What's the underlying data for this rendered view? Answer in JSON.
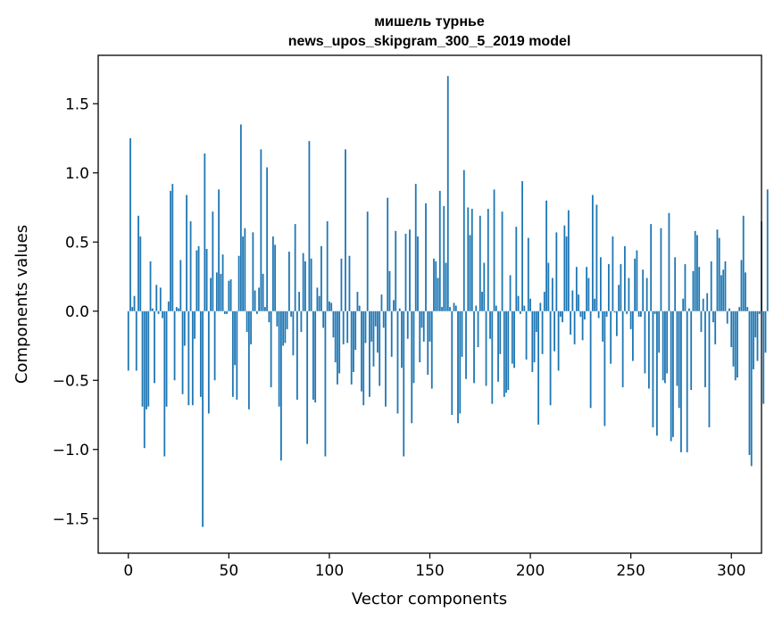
{
  "chart_data": {
    "type": "bar",
    "title": "мишель турнье",
    "subtitle": "news_upos_skipgram_300_5_2019 model",
    "xlabel": "Vector components",
    "ylabel": "Components values",
    "xlim": [
      -15,
      315
    ],
    "ylim": [
      -1.75,
      1.85
    ],
    "xticks": [
      0,
      50,
      100,
      150,
      200,
      250,
      300
    ],
    "xtick_labels": [
      "0",
      "50",
      "100",
      "150",
      "200",
      "250",
      "300"
    ],
    "yticks": [
      -1.5,
      -1.0,
      -0.5,
      0.0,
      0.5,
      1.0,
      1.5
    ],
    "ytick_labels": [
      "−1.5",
      "−1.0",
      "−0.5",
      "0.0",
      "0.5",
      "1.0",
      "1.5"
    ],
    "grid": false,
    "bar_color": "#1f77b4",
    "values": [
      -0.43,
      1.25,
      0.03,
      0.11,
      -0.43,
      0.69,
      0.54,
      -0.69,
      -0.99,
      -0.71,
      -0.69,
      0.36,
      0.02,
      -0.52,
      0.19,
      -0.02,
      0.17,
      -0.05,
      -1.05,
      -0.69,
      0.07,
      0.87,
      0.92,
      -0.5,
      0.03,
      0.02,
      0.37,
      -0.6,
      -0.25,
      0.84,
      -0.68,
      0.65,
      -0.68,
      -0.2,
      0.44,
      0.47,
      -0.62,
      -1.56,
      1.14,
      0.45,
      -0.74,
      0.24,
      0.72,
      -0.5,
      0.28,
      0.88,
      0.27,
      0.41,
      -0.02,
      -0.02,
      0.22,
      0.23,
      -0.62,
      -0.39,
      -0.64,
      0.4,
      1.35,
      0.54,
      0.6,
      -0.15,
      -0.71,
      -0.24,
      0.57,
      0.15,
      -0.02,
      0.17,
      1.17,
      0.27,
      0.03,
      1.04,
      -0.08,
      -0.55,
      0.54,
      0.48,
      -0.11,
      -0.69,
      -1.08,
      -0.25,
      -0.23,
      -0.13,
      0.43,
      -0.04,
      -0.32,
      0.63,
      -0.64,
      0.14,
      -0.15,
      0.42,
      0.36,
      -0.96,
      1.23,
      0.38,
      -0.64,
      -0.66,
      0.17,
      0.11,
      0.47,
      -0.12,
      -1.05,
      0.65,
      0.07,
      0.06,
      -0.19,
      -0.37,
      -0.53,
      -0.45,
      0.38,
      -0.24,
      1.17,
      -0.23,
      0.4,
      -0.53,
      -0.44,
      -0.28,
      0.14,
      0.04,
      -0.58,
      -0.68,
      -0.23,
      0.72,
      -0.62,
      -0.22,
      -0.4,
      -0.11,
      -0.3,
      -0.54,
      0.12,
      -0.12,
      -0.69,
      0.82,
      0.29,
      -0.33,
      0.08,
      0.58,
      -0.74,
      0.02,
      -0.41,
      -1.05,
      0.56,
      -0.2,
      0.59,
      -0.81,
      -0.52,
      0.92,
      0.54,
      -0.37,
      -0.12,
      -0.22,
      0.78,
      -0.46,
      -0.22,
      -0.56,
      0.38,
      0.36,
      0.24,
      0.87,
      0.03,
      0.76,
      0.35,
      1.7,
      0.03,
      -0.75,
      0.06,
      0.04,
      -0.81,
      -0.74,
      -0.33,
      1.02,
      -0.49,
      0.75,
      0.55,
      0.74,
      -0.52,
      0.04,
      -0.26,
      0.69,
      0.14,
      0.35,
      -0.54,
      0.74,
      -0.2,
      -0.67,
      0.88,
      0.04,
      -0.51,
      -0.31,
      0.72,
      -0.62,
      -0.59,
      -0.57,
      0.26,
      -0.38,
      -0.41,
      0.61,
      0.11,
      -0.02,
      0.94,
      0.04,
      -0.35,
      0.53,
      0.09,
      -0.44,
      -0.37,
      -0.15,
      -0.82,
      0.06,
      -0.31,
      0.14,
      0.8,
      0.35,
      -0.68,
      0.24,
      -0.29,
      0.57,
      -0.43,
      -0.04,
      -0.08,
      0.62,
      0.54,
      0.73,
      -0.17,
      0.15,
      -0.24,
      0.32,
      0.12,
      -0.04,
      -0.21,
      -0.06,
      0.32,
      0.24,
      -0.7,
      0.84,
      0.09,
      0.77,
      -0.05,
      0.39,
      -0.22,
      -0.83,
      -0.04,
      0.34,
      -0.38,
      0.54,
      -0.01,
      -0.18,
      0.19,
      0.34,
      -0.55,
      0.47,
      -0.02,
      0.24,
      -0.13,
      -0.36,
      0.38,
      0.44,
      -0.04,
      -0.04,
      0.3,
      -0.45,
      0.24,
      -0.56,
      0.63,
      -0.84,
      -0.02,
      -0.9,
      -0.3,
      0.6,
      -0.5,
      -0.52,
      -0.45,
      0.71,
      -0.94,
      -0.91,
      0.39,
      -0.54,
      -0.7,
      -1.02,
      0.09,
      0.34,
      -1.02,
      0.02,
      -0.57,
      0.29,
      0.58,
      0.55,
      0.32,
      -0.15,
      0.09,
      -0.55,
      0.13,
      -0.84,
      0.36,
      -0.08,
      -0.24,
      0.59,
      0.53,
      0.26,
      0.3,
      0.36,
      -0.09,
      0.02,
      -0.26,
      -0.4,
      -0.5,
      -0.48,
      0.03,
      0.37,
      0.69,
      0.28,
      0.03,
      -1.04,
      -1.12,
      -0.42,
      -0.19,
      -0.36,
      -0.02,
      0.65,
      -0.67,
      -0.3,
      0.88
    ]
  }
}
